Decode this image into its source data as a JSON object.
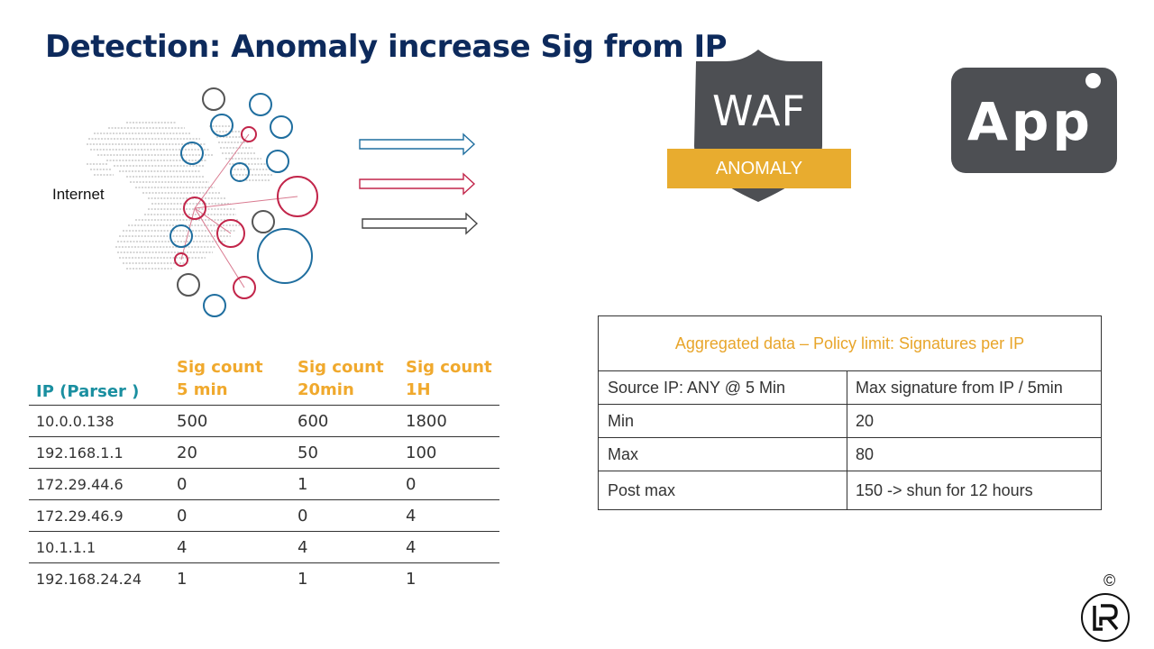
{
  "title": "Detection: Anomaly increase Sig from IP",
  "internet_label": "Internet",
  "waf": {
    "label": "WAF",
    "badge": "ANOMALY",
    "shield_color": "#4d4f53",
    "badge_color": "#e8ac2f"
  },
  "app": {
    "label": "App",
    "color": "#4d4f53"
  },
  "colors": {
    "blue": "#1f6e9f",
    "red": "#c2254a",
    "gray": "#555555",
    "accent_orange": "#f0a92d",
    "teal": "#1a8fa0",
    "title_navy": "#0d2a5c"
  },
  "sig_table": {
    "headers": {
      "ip": "IP (Parser )",
      "c5": [
        "Sig count",
        "5 min"
      ],
      "c20": [
        "Sig count",
        "20min"
      ],
      "c1h": [
        "Sig count",
        "1H"
      ]
    },
    "rows": [
      {
        "ip": "10.0.0.138",
        "c5": "500",
        "c20": "600",
        "c1h": "1800"
      },
      {
        "ip": "192.168.1.1",
        "c5": "20",
        "c20": "50",
        "c1h": "100"
      },
      {
        "ip": "172.29.44.6",
        "c5": "0",
        "c20": "1",
        "c1h": "0"
      },
      {
        "ip": "172.29.46.9",
        "c5": "0",
        "c20": "0",
        "c1h": "4"
      },
      {
        "ip": "10.1.1.1",
        "c5": "4",
        "c20": "4",
        "c1h": "4"
      },
      {
        "ip": "192.168.24.24",
        "c5": "1",
        "c20": "1",
        "c1h": "1"
      }
    ]
  },
  "policy": {
    "title": "Aggregated data – Policy limit: Signatures per IP",
    "rows": [
      {
        "k": "Source IP: ANY @ 5 Min",
        "v": "Max signature from IP / 5min"
      },
      {
        "k": "Min",
        "v": "20"
      },
      {
        "k": "Max",
        "v": "80"
      },
      {
        "k": "Post max",
        "v": "150 -> shun for 12 hours"
      }
    ]
  },
  "copyright": "©"
}
